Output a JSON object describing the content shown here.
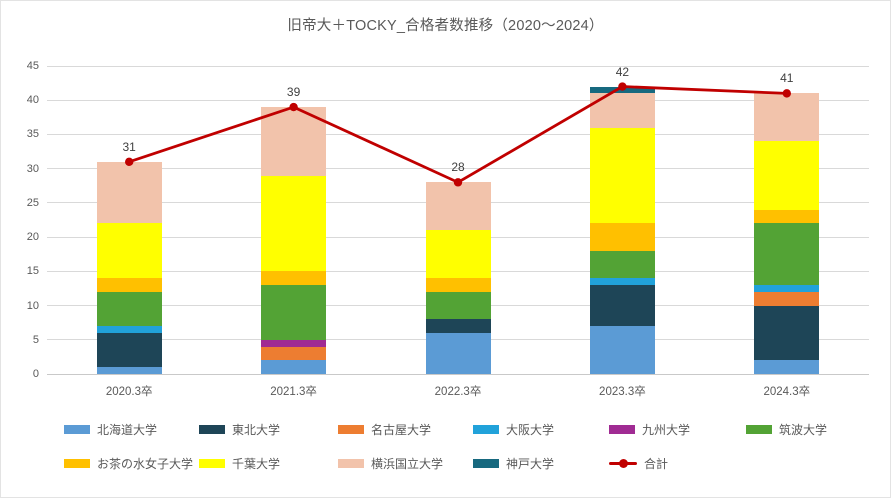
{
  "chart_data": {
    "type": "bar",
    "stacked": true,
    "title": "旧帝大＋TOCKY_合格者数推移（2020～2024）",
    "categories": [
      "2020.3卒",
      "2021.3卒",
      "2022.3卒",
      "2023.3卒",
      "2024.3卒"
    ],
    "series": [
      {
        "name": "北海道大学",
        "color": "#5B9BD5",
        "values": [
          1,
          2,
          6,
          7,
          2
        ]
      },
      {
        "name": "東北大学",
        "color": "#1E4557",
        "values": [
          5,
          0,
          2,
          6,
          8
        ]
      },
      {
        "name": "名古屋大学",
        "color": "#ED7D31",
        "values": [
          0,
          2,
          0,
          0,
          2
        ]
      },
      {
        "name": "大阪大学",
        "color": "#21A2DA",
        "values": [
          1,
          0,
          0,
          1,
          1
        ]
      },
      {
        "name": "九州大学",
        "color": "#A02B93",
        "values": [
          0,
          1,
          0,
          0,
          0
        ]
      },
      {
        "name": "筑波大学",
        "color": "#53A335",
        "values": [
          5,
          8,
          4,
          4,
          9
        ]
      },
      {
        "name": "お茶の水女子大学",
        "color": "#FFC000",
        "values": [
          2,
          2,
          2,
          4,
          2
        ]
      },
      {
        "name": "千葉大学",
        "color": "#FFFF00",
        "values": [
          8,
          14,
          7,
          14,
          10
        ]
      },
      {
        "name": "横浜国立大学",
        "color": "#F2C3AB",
        "values": [
          9,
          10,
          7,
          5,
          7
        ]
      },
      {
        "name": "神戸大学",
        "color": "#17697F",
        "values": [
          0,
          0,
          0,
          1,
          0
        ]
      }
    ],
    "line_series": {
      "name": "合計",
      "color": "#C00000",
      "values": [
        31,
        39,
        28,
        42,
        41
      ]
    },
    "data_labels": [
      "31",
      "39",
      "28",
      "42",
      "41"
    ],
    "y_axis": {
      "min": 0,
      "max": 45,
      "step": 5,
      "ticks": [
        0,
        5,
        10,
        15,
        20,
        25,
        30,
        35,
        40,
        45
      ]
    },
    "grid": true,
    "legend_position": "bottom"
  },
  "colors": {
    "background": "#FFFFFF",
    "grid": "#D9D9D9",
    "axis_text": "#595959",
    "title_text": "#595959",
    "data_label_text": "#404040",
    "total_line": "#C00000"
  }
}
